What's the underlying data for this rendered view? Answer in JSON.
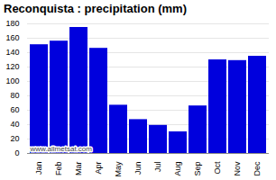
{
  "chart_data": {
    "type": "bar",
    "title": "Reconquista : precipitation (mm)",
    "categories": [
      "Jan",
      "Feb",
      "Mar",
      "Apr",
      "May",
      "Jun",
      "Jul",
      "Aug",
      "Sep",
      "Oct",
      "Nov",
      "Dec"
    ],
    "values": [
      151,
      156,
      175,
      146,
      67,
      47,
      39,
      30,
      66,
      130,
      129,
      135
    ],
    "color": "#0000dd",
    "ylim": [
      0,
      180
    ],
    "yticks": [
      0,
      20,
      40,
      60,
      80,
      100,
      120,
      140,
      160,
      180
    ],
    "grid": true,
    "annotations": [
      "www.allmetsat.com"
    ]
  }
}
